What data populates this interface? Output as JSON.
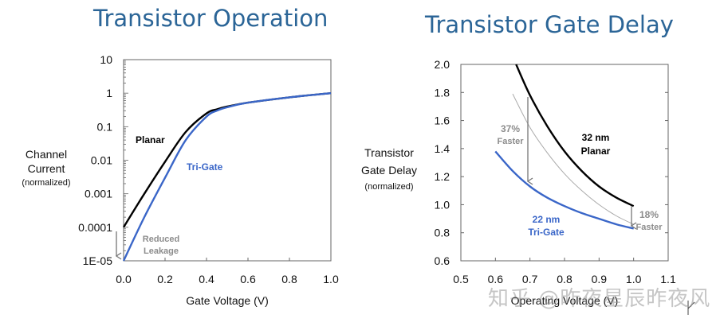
{
  "titles": {
    "left": "Transistor Operation",
    "right": "Transistor Gate Delay"
  },
  "watermark": "知乎 @昨夜星辰昨夜风",
  "colors": {
    "title": "#2b6597",
    "planar": "#000000",
    "trigate": "#3a66c8",
    "annotation": "#8c8c8c"
  },
  "chart_data": [
    {
      "type": "line",
      "title": "Transistor Operation",
      "xlabel": "Gate Voltage (V)",
      "ylabel": "Channel Current",
      "ylabel_sub": "(normalized)",
      "yscale": "log",
      "xlim": [
        0.0,
        1.0
      ],
      "ylim": [
        1e-05,
        10
      ],
      "xticks": [
        "0.0",
        "0.2",
        "0.4",
        "0.6",
        "0.8",
        "1.0"
      ],
      "yticks": [
        "10",
        "1",
        "0.1",
        "0.01",
        "0.001",
        "0.0001",
        "1E-05"
      ],
      "series": [
        {
          "name": "Planar",
          "x": [
            0.0,
            0.1,
            0.2,
            0.3,
            0.4,
            0.45,
            0.5,
            0.6,
            0.8,
            1.0
          ],
          "y": [
            0.0001,
            0.001,
            0.009,
            0.07,
            0.25,
            0.33,
            0.4,
            0.52,
            0.75,
            1.0
          ]
        },
        {
          "name": "Tri-Gate",
          "x": [
            0.0,
            0.1,
            0.2,
            0.3,
            0.4,
            0.45,
            0.5,
            0.6,
            0.8,
            1.0
          ],
          "y": [
            1e-05,
            0.0002,
            0.003,
            0.04,
            0.2,
            0.3,
            0.38,
            0.52,
            0.75,
            1.0
          ]
        }
      ],
      "annotations": [
        "Planar",
        "Tri-Gate",
        "Reduced",
        "Leakage"
      ],
      "grid": false
    },
    {
      "type": "line",
      "title": "Transistor Gate Delay",
      "xlabel": "Operating Voltage (V)",
      "ylabel": "Transistor Gate Delay",
      "ylabel_sub": "(normalized)",
      "xlim": [
        0.5,
        1.1
      ],
      "ylim": [
        0.6,
        2.0
      ],
      "xticks": [
        "0.5",
        "0.6",
        "0.7",
        "0.8",
        "0.9",
        "1.0",
        "1.1"
      ],
      "yticks": [
        "2.0",
        "1.8",
        "1.6",
        "1.4",
        "1.2",
        "1.0",
        "0.8",
        "0.6"
      ],
      "series": [
        {
          "name": "32 nm Planar",
          "x": [
            0.66,
            0.7,
            0.75,
            0.8,
            0.85,
            0.9,
            0.95,
            1.0
          ],
          "y": [
            2.0,
            1.78,
            1.56,
            1.38,
            1.24,
            1.13,
            1.05,
            0.99
          ]
        },
        {
          "name": "22 nm Tri-Gate",
          "x": [
            0.6,
            0.65,
            0.7,
            0.75,
            0.8,
            0.85,
            0.9,
            0.95,
            1.0
          ],
          "y": [
            1.38,
            1.24,
            1.13,
            1.05,
            0.99,
            0.94,
            0.9,
            0.86,
            0.83
          ]
        },
        {
          "name": "reference (thin gray)",
          "x": [
            0.65,
            0.7,
            0.75,
            0.8,
            0.85,
            0.9,
            0.95,
            1.0
          ],
          "y": [
            1.79,
            1.55,
            1.37,
            1.22,
            1.1,
            1.0,
            0.92,
            0.86
          ]
        }
      ],
      "annotations": [
        "37% Faster",
        "18% Faster",
        "32 nm Planar",
        "22 nm Tri-Gate"
      ],
      "grid": false
    }
  ],
  "left": {
    "ylabel1": "Channel",
    "ylabel2": "Current",
    "ylabel3": "(normalized)",
    "xlabel": "Gate Voltage (V)",
    "xticks": [
      "0.0",
      "0.2",
      "0.4",
      "0.6",
      "0.8",
      "1.0"
    ],
    "yticks": [
      "10",
      "1",
      "0.1",
      "0.01",
      "0.001",
      "0.0001",
      "1E-05"
    ],
    "label_planar": "Planar",
    "label_trigate": "Tri-Gate",
    "label_reduced": "Reduced",
    "label_leakage": "Leakage"
  },
  "right": {
    "ylabel1": "Transistor",
    "ylabel2": "Gate Delay",
    "ylabel3": "(normalized)",
    "xlabel": "Operating Voltage (V)",
    "xticks": [
      "0.5",
      "0.6",
      "0.7",
      "0.8",
      "0.9",
      "1.0",
      "1.1"
    ],
    "yticks": [
      "2.0",
      "1.8",
      "1.6",
      "1.4",
      "1.2",
      "1.0",
      "0.8",
      "0.6"
    ],
    "pct37": "37%",
    "faster1": "Faster",
    "pct18": "18%",
    "faster2": "Faster",
    "planar1": "32 nm",
    "planar2": "Planar",
    "trigate1": "22 nm",
    "trigate2": "Tri-Gate"
  }
}
